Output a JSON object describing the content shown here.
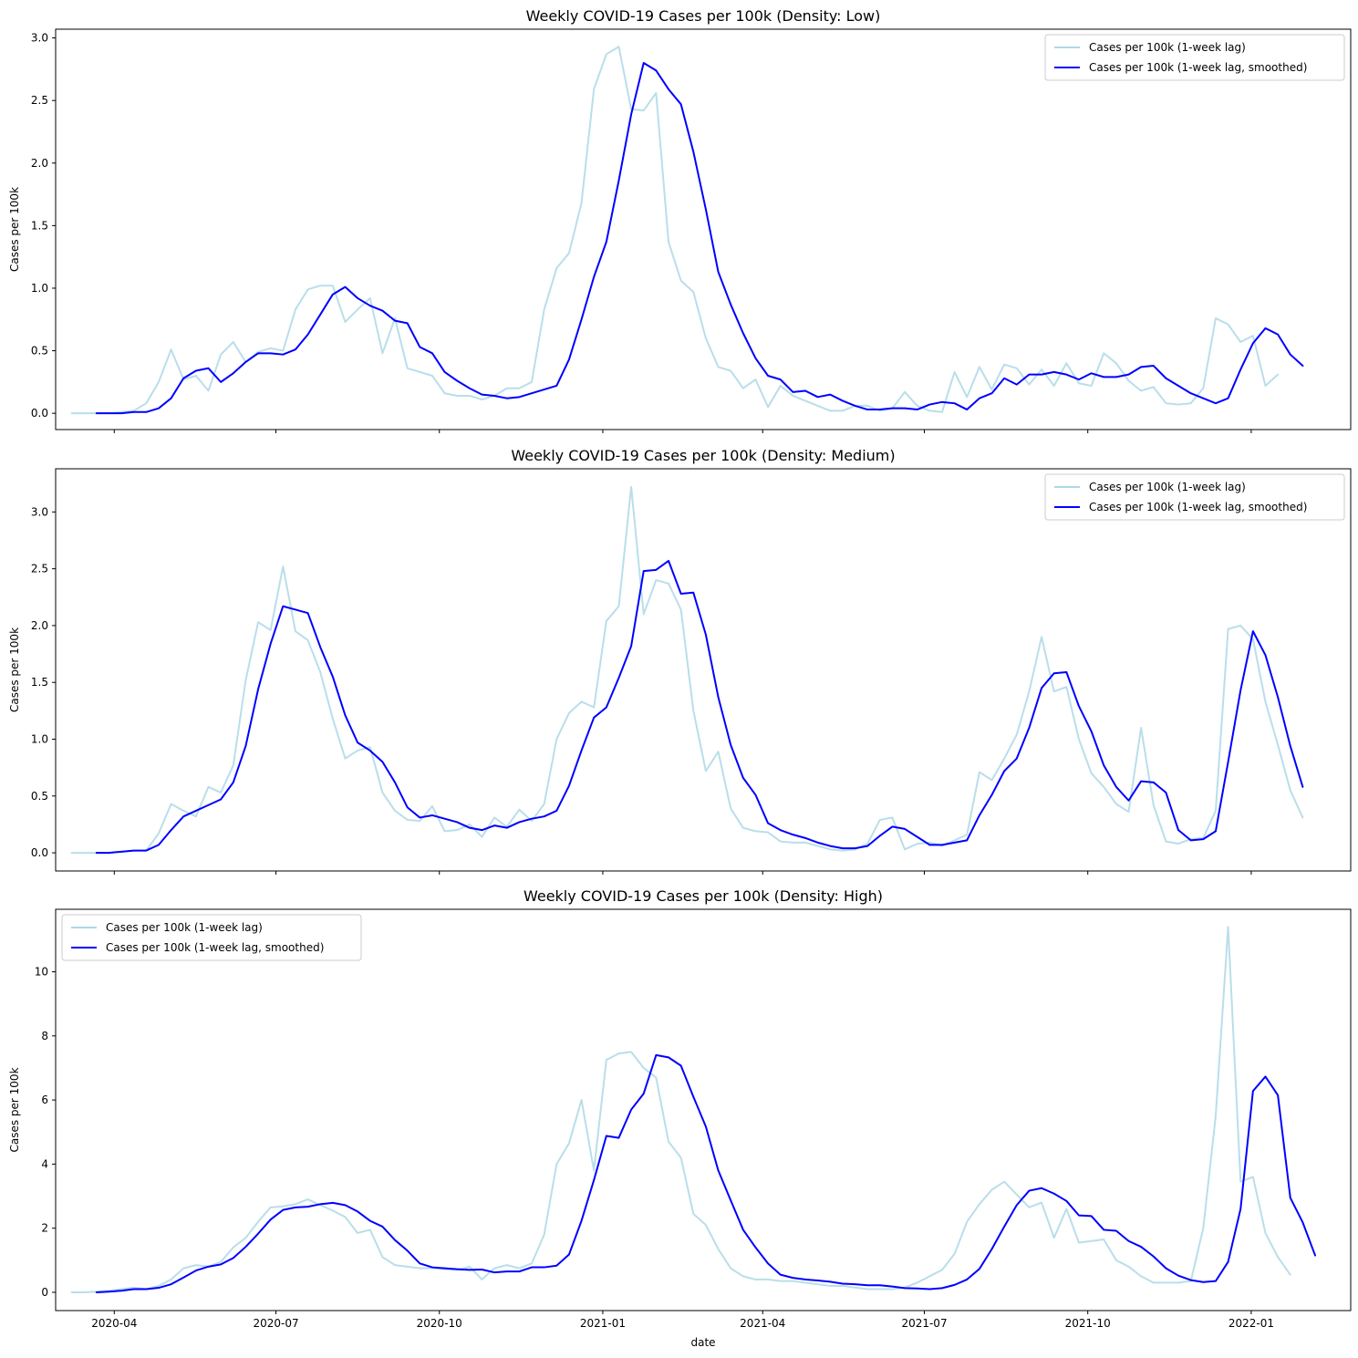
{
  "figure": {
    "xlabel": "date",
    "colors": {
      "raw": "#add8e6",
      "smooth": "#0000ff"
    }
  },
  "chart_data": [
    {
      "type": "line",
      "title": "Weekly COVID-19 Cases per 100k (Density: Low)",
      "xlabel": "",
      "ylabel": "Cases per 100k",
      "ylim": [
        -0.13,
        3.07
      ],
      "yticks": [
        0.0,
        0.5,
        1.0,
        1.5,
        2.0,
        2.5,
        3.0
      ],
      "ytick_labels": [
        "0.0",
        "0.5",
        "1.0",
        "1.5",
        "2.0",
        "2.5",
        "3.0"
      ],
      "xlim": [
        "2020-02-28",
        "2022-02-26"
      ],
      "xticks": [
        "2020-04-01",
        "2020-07-01",
        "2020-10-01",
        "2021-01-01",
        "2021-04-01",
        "2021-07-01",
        "2021-10-01",
        "2022-01-01"
      ],
      "xtick_labels": [],
      "legend_loc": "upper right",
      "series": [
        {
          "name": "Cases per 100k (1-week lag)",
          "color": "#add8e6",
          "start": "2020-03-08",
          "step_days": 7,
          "values": [
            0.0,
            0.0,
            0.0,
            0.0,
            0.01,
            0.02,
            0.08,
            0.25,
            0.51,
            0.27,
            0.3,
            0.18,
            0.47,
            0.57,
            0.41,
            0.49,
            0.52,
            0.5,
            0.83,
            0.99,
            1.02,
            1.02,
            0.73,
            0.83,
            0.92,
            0.48,
            0.76,
            0.36,
            0.33,
            0.3,
            0.16,
            0.14,
            0.14,
            0.11,
            0.14,
            0.2,
            0.2,
            0.25,
            0.83,
            1.16,
            1.28,
            1.68,
            2.59,
            2.87,
            2.93,
            2.43,
            2.42,
            2.56,
            1.37,
            1.06,
            0.97,
            0.6,
            0.37,
            0.34,
            0.2,
            0.27,
            0.05,
            0.22,
            0.14,
            0.1,
            0.06,
            0.02,
            0.02,
            0.06,
            0.06,
            0.02,
            0.04,
            0.17,
            0.06,
            0.02,
            0.01,
            0.33,
            0.13,
            0.37,
            0.19,
            0.39,
            0.36,
            0.23,
            0.35,
            0.22,
            0.4,
            0.24,
            0.22,
            0.48,
            0.4,
            0.26,
            0.18,
            0.21,
            0.08,
            0.07,
            0.08,
            0.2,
            0.76,
            0.71,
            0.57,
            0.62,
            0.22,
            0.31
          ]
        },
        {
          "name": "Cases per 100k (1-week lag, smoothed)",
          "color": "#0000ff",
          "start": "2020-03-22",
          "step_days": 7,
          "values": [
            0.0,
            0.0,
            0.0,
            0.01,
            0.01,
            0.04,
            0.12,
            0.28,
            0.34,
            0.36,
            0.25,
            0.32,
            0.41,
            0.48,
            0.48,
            0.47,
            0.51,
            0.63,
            0.79,
            0.95,
            1.01,
            0.92,
            0.86,
            0.82,
            0.74,
            0.72,
            0.53,
            0.48,
            0.33,
            0.26,
            0.2,
            0.15,
            0.14,
            0.12,
            0.13,
            0.16,
            0.19,
            0.22,
            0.43,
            0.75,
            1.09,
            1.37,
            1.86,
            2.39,
            2.8,
            2.74,
            2.59,
            2.47,
            2.09,
            1.63,
            1.13,
            0.87,
            0.64,
            0.44,
            0.3,
            0.27,
            0.17,
            0.18,
            0.13,
            0.15,
            0.1,
            0.06,
            0.03,
            0.03,
            0.04,
            0.04,
            0.03,
            0.07,
            0.09,
            0.08,
            0.03,
            0.12,
            0.16,
            0.28,
            0.23,
            0.31,
            0.31,
            0.33,
            0.31,
            0.27,
            0.32,
            0.29,
            0.29,
            0.31,
            0.37,
            0.38,
            0.28,
            0.22,
            0.16,
            0.12,
            0.08,
            0.12,
            0.35,
            0.56,
            0.68,
            0.63,
            0.47,
            0.38
          ]
        }
      ]
    },
    {
      "type": "line",
      "title": "Weekly COVID-19 Cases per 100k (Density: Medium)",
      "xlabel": "",
      "ylabel": "Cases per 100k",
      "ylim": [
        -0.16,
        3.38
      ],
      "yticks": [
        0.0,
        0.5,
        1.0,
        1.5,
        2.0,
        2.5,
        3.0
      ],
      "ytick_labels": [
        "0.0",
        "0.5",
        "1.0",
        "1.5",
        "2.0",
        "2.5",
        "3.0"
      ],
      "xlim": [
        "2020-02-28",
        "2022-02-26"
      ],
      "xticks": [
        "2020-04-01",
        "2020-07-01",
        "2020-10-01",
        "2021-01-01",
        "2021-04-01",
        "2021-07-01",
        "2021-10-01",
        "2022-01-01"
      ],
      "xtick_labels": [],
      "legend_loc": "upper right",
      "series": [
        {
          "name": "Cases per 100k (1-week lag)",
          "color": "#add8e6",
          "start": "2020-03-08",
          "step_days": 7,
          "values": [
            0.0,
            0.0,
            0.0,
            0.0,
            0.01,
            0.02,
            0.02,
            0.17,
            0.43,
            0.37,
            0.32,
            0.58,
            0.53,
            0.77,
            1.52,
            2.03,
            1.96,
            2.52,
            1.95,
            1.87,
            1.59,
            1.18,
            0.83,
            0.9,
            0.93,
            0.53,
            0.37,
            0.29,
            0.28,
            0.41,
            0.19,
            0.2,
            0.25,
            0.14,
            0.31,
            0.23,
            0.38,
            0.28,
            0.43,
            1.0,
            1.23,
            1.33,
            1.28,
            2.04,
            2.17,
            3.22,
            2.1,
            2.4,
            2.37,
            2.14,
            1.25,
            0.72,
            0.89,
            0.39,
            0.22,
            0.19,
            0.18,
            0.1,
            0.09,
            0.09,
            0.06,
            0.03,
            0.02,
            0.03,
            0.08,
            0.29,
            0.31,
            0.03,
            0.08,
            0.09,
            0.06,
            0.11,
            0.16,
            0.71,
            0.64,
            0.83,
            1.04,
            1.42,
            1.9,
            1.42,
            1.46,
            1.0,
            0.7,
            0.58,
            0.43,
            0.36,
            1.1,
            0.42,
            0.1,
            0.08,
            0.12,
            0.13,
            0.37,
            1.97,
            2.0,
            1.88,
            1.33,
            0.95,
            0.55,
            0.31
          ]
        },
        {
          "name": "Cases per 100k (1-week lag, smoothed)",
          "color": "#0000ff",
          "start": "2020-03-22",
          "step_days": 7,
          "values": [
            0.0,
            0.0,
            0.01,
            0.02,
            0.02,
            0.07,
            0.2,
            0.32,
            0.37,
            0.42,
            0.47,
            0.62,
            0.94,
            1.44,
            1.84,
            2.17,
            2.14,
            2.11,
            1.81,
            1.55,
            1.21,
            0.97,
            0.9,
            0.8,
            0.62,
            0.4,
            0.31,
            0.33,
            0.3,
            0.27,
            0.22,
            0.2,
            0.24,
            0.22,
            0.27,
            0.3,
            0.32,
            0.37,
            0.59,
            0.9,
            1.19,
            1.28,
            1.54,
            1.82,
            2.48,
            2.49,
            2.57,
            2.28,
            2.29,
            1.92,
            1.37,
            0.95,
            0.66,
            0.51,
            0.26,
            0.2,
            0.16,
            0.13,
            0.09,
            0.06,
            0.04,
            0.04,
            0.06,
            0.15,
            0.23,
            0.21,
            0.14,
            0.07,
            0.07,
            0.09,
            0.11,
            0.33,
            0.51,
            0.72,
            0.83,
            1.1,
            1.45,
            1.58,
            1.59,
            1.29,
            1.07,
            0.77,
            0.58,
            0.46,
            0.63,
            0.62,
            0.53,
            0.2,
            0.11,
            0.12,
            0.19,
            0.8,
            1.43,
            1.95,
            1.74,
            1.37,
            0.94,
            0.58
          ]
        }
      ]
    },
    {
      "type": "line",
      "title": "Weekly COVID-19 Cases per 100k (Density: High)",
      "xlabel": "date",
      "ylabel": "Cases per 100k",
      "ylim": [
        -0.57,
        11.95
      ],
      "yticks": [
        0,
        2,
        4,
        6,
        8,
        10
      ],
      "ytick_labels": [
        "0",
        "2",
        "4",
        "6",
        "8",
        "10"
      ],
      "xlim": [
        "2020-02-28",
        "2022-02-26"
      ],
      "xticks": [
        "2020-04-01",
        "2020-07-01",
        "2020-10-01",
        "2021-01-01",
        "2021-04-01",
        "2021-07-01",
        "2021-10-01",
        "2022-01-01"
      ],
      "xtick_labels": [
        "2020-04",
        "2020-07",
        "2020-10",
        "2021-01",
        "2021-04",
        "2021-07",
        "2021-10",
        "2022-01"
      ],
      "legend_loc": "upper left",
      "series": [
        {
          "name": "Cases per 100k (1-week lag)",
          "color": "#add8e6",
          "start": "2020-03-08",
          "step_days": 7,
          "values": [
            0.0,
            0.0,
            0.02,
            0.05,
            0.1,
            0.15,
            0.1,
            0.2,
            0.4,
            0.75,
            0.85,
            0.8,
            0.95,
            1.4,
            1.7,
            2.2,
            2.65,
            2.68,
            2.75,
            2.9,
            2.72,
            2.55,
            2.35,
            1.85,
            1.95,
            1.1,
            0.85,
            0.8,
            0.75,
            0.75,
            0.72,
            0.7,
            0.8,
            0.4,
            0.75,
            0.85,
            0.75,
            0.9,
            1.8,
            4.0,
            4.65,
            6.0,
            3.8,
            7.25,
            7.45,
            7.5,
            7.0,
            6.7,
            4.7,
            4.2,
            2.45,
            2.1,
            1.35,
            0.75,
            0.5,
            0.4,
            0.4,
            0.35,
            0.35,
            0.3,
            0.25,
            0.2,
            0.2,
            0.15,
            0.1,
            0.1,
            0.1,
            0.15,
            0.3,
            0.5,
            0.7,
            1.2,
            2.2,
            2.75,
            3.2,
            3.45,
            3.05,
            2.65,
            2.8,
            1.7,
            2.6,
            1.55,
            1.6,
            1.65,
            1.0,
            0.8,
            0.5,
            0.3,
            0.3,
            0.3,
            0.35,
            2.0,
            5.5,
            11.4,
            3.45,
            3.6,
            1.85,
            1.1,
            0.55
          ]
        },
        {
          "name": "Cases per 100k (1-week lag, smoothed)",
          "color": "#0000ff",
          "start": "2020-03-22",
          "step_days": 7,
          "values": [
            0.0,
            0.02,
            0.05,
            0.1,
            0.1,
            0.14,
            0.25,
            0.46,
            0.68,
            0.8,
            0.87,
            1.07,
            1.42,
            1.83,
            2.27,
            2.57,
            2.65,
            2.67,
            2.75,
            2.79,
            2.72,
            2.52,
            2.23,
            2.05,
            1.63,
            1.3,
            0.9,
            0.78,
            0.75,
            0.72,
            0.7,
            0.71,
            0.62,
            0.65,
            0.65,
            0.78,
            0.78,
            0.83,
            1.18,
            2.23,
            3.5,
            4.88,
            4.82,
            5.7,
            6.2,
            7.4,
            7.33,
            7.07,
            6.1,
            5.17,
            3.8,
            2.87,
            1.95,
            1.4,
            0.9,
            0.55,
            0.45,
            0.4,
            0.37,
            0.33,
            0.27,
            0.25,
            0.22,
            0.22,
            0.18,
            0.13,
            0.12,
            0.1,
            0.13,
            0.23,
            0.4,
            0.73,
            1.35,
            2.05,
            2.72,
            3.17,
            3.25,
            3.08,
            2.85,
            2.4,
            2.38,
            1.95,
            1.92,
            1.6,
            1.42,
            1.12,
            0.75,
            0.52,
            0.38,
            0.32,
            0.35,
            0.95,
            2.6,
            6.28,
            6.73,
            6.15,
            2.95,
            2.18,
            1.15
          ]
        }
      ]
    }
  ]
}
